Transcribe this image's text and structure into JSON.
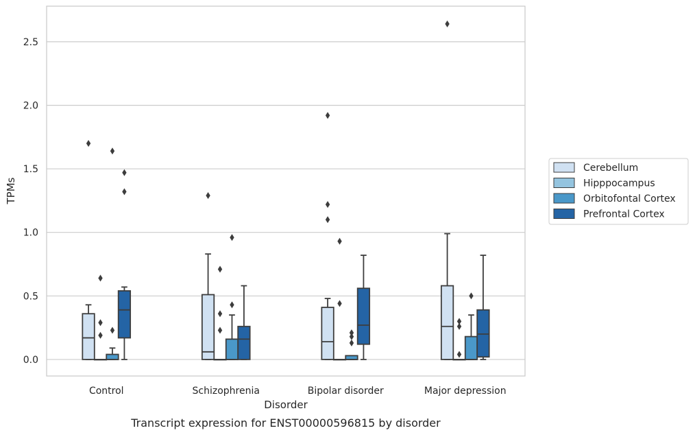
{
  "chart_data": {
    "type": "boxplot",
    "xlabel": "Disorder",
    "ylabel": "TPMs",
    "caption": "Transcript expression for ENST00000596815 by disorder",
    "categories": [
      "Control",
      "Schizophrenia",
      "Bipolar disorder",
      "Major depression"
    ],
    "ylim": [
      -0.13,
      2.78
    ],
    "yticks": [
      0.0,
      0.5,
      1.0,
      1.5,
      2.0,
      2.5
    ],
    "ytick_labels": [
      "0.0",
      "0.5",
      "1.0",
      "1.5",
      "2.0",
      "2.5"
    ],
    "grid": true,
    "legend_position": "right",
    "series": [
      {
        "name": "Cerebellum",
        "color": "#d0e1f2",
        "boxes": [
          {
            "q1": 0.0,
            "median": 0.17,
            "q3": 0.36,
            "whisker_low": 0.0,
            "whisker_high": 0.43,
            "outliers": [
              1.7
            ]
          },
          {
            "q1": 0.0,
            "median": 0.06,
            "q3": 0.51,
            "whisker_low": 0.0,
            "whisker_high": 0.83,
            "outliers": [
              1.29
            ]
          },
          {
            "q1": 0.0,
            "median": 0.14,
            "q3": 0.41,
            "whisker_low": 0.0,
            "whisker_high": 0.48,
            "outliers": [
              1.1,
              1.22,
              1.92
            ]
          },
          {
            "q1": 0.0,
            "median": 0.26,
            "q3": 0.58,
            "whisker_low": 0.0,
            "whisker_high": 0.99,
            "outliers": [
              2.64
            ]
          }
        ]
      },
      {
        "name": "Hipppocampus",
        "color": "#94c4df",
        "boxes": [
          {
            "q1": 0.0,
            "median": 0.0,
            "q3": 0.0,
            "whisker_low": 0.0,
            "whisker_high": 0.0,
            "outliers": [
              0.19,
              0.29,
              0.64
            ]
          },
          {
            "q1": 0.0,
            "median": 0.0,
            "q3": 0.0,
            "whisker_low": 0.0,
            "whisker_high": 0.0,
            "outliers": [
              0.23,
              0.36,
              0.71
            ]
          },
          {
            "q1": 0.0,
            "median": 0.0,
            "q3": 0.0,
            "whisker_low": 0.0,
            "whisker_high": 0.0,
            "outliers": [
              0.44,
              0.93
            ]
          },
          {
            "q1": 0.0,
            "median": 0.0,
            "q3": 0.0,
            "whisker_low": 0.0,
            "whisker_high": 0.0,
            "outliers": [
              0.04,
              0.26,
              0.3
            ]
          }
        ]
      },
      {
        "name": "Orbitofontal Cortex",
        "color": "#4a98c9",
        "boxes": [
          {
            "q1": 0.0,
            "median": 0.0,
            "q3": 0.04,
            "whisker_low": 0.0,
            "whisker_high": 0.09,
            "outliers": [
              0.23,
              1.64
            ]
          },
          {
            "q1": 0.0,
            "median": 0.0,
            "q3": 0.16,
            "whisker_low": 0.0,
            "whisker_high": 0.35,
            "outliers": [
              0.43,
              0.96
            ]
          },
          {
            "q1": 0.0,
            "median": 0.0,
            "q3": 0.03,
            "whisker_low": 0.0,
            "whisker_high": 0.03,
            "outliers": [
              0.13,
              0.18,
              0.21
            ]
          },
          {
            "q1": 0.0,
            "median": 0.0,
            "q3": 0.18,
            "whisker_low": 0.0,
            "whisker_high": 0.35,
            "outliers": [
              0.5
            ]
          }
        ]
      },
      {
        "name": "Prefrontal Cortex",
        "color": "#2464a5",
        "boxes": [
          {
            "q1": 0.17,
            "median": 0.39,
            "q3": 0.54,
            "whisker_low": 0.0,
            "whisker_high": 0.57,
            "outliers": [
              1.32,
              1.47
            ]
          },
          {
            "q1": 0.0,
            "median": 0.16,
            "q3": 0.26,
            "whisker_low": 0.0,
            "whisker_high": 0.58,
            "outliers": []
          },
          {
            "q1": 0.12,
            "median": 0.27,
            "q3": 0.56,
            "whisker_low": 0.0,
            "whisker_high": 0.82,
            "outliers": []
          },
          {
            "q1": 0.02,
            "median": 0.2,
            "q3": 0.39,
            "whisker_low": 0.0,
            "whisker_high": 0.82,
            "outliers": []
          }
        ]
      }
    ]
  }
}
